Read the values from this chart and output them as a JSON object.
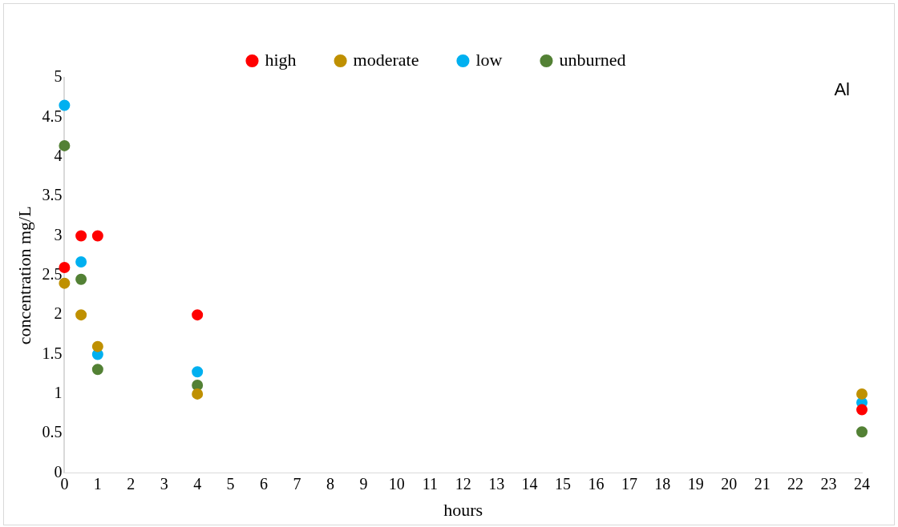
{
  "chart_data": {
    "type": "scatter",
    "xlabel": "hours",
    "ylabel": "concentration mg/L",
    "annotations": [
      "Al"
    ],
    "x": [
      0,
      0.5,
      1,
      4,
      24
    ],
    "series": [
      {
        "name": "high",
        "color": "#ff0000",
        "values": [
          2.6,
          3.0,
          3.0,
          2.0,
          0.8
        ]
      },
      {
        "name": "moderate",
        "color": "#bf9000",
        "values": [
          2.4,
          2.0,
          1.6,
          1.0,
          1.0
        ]
      },
      {
        "name": "low",
        "color": "#00b0f0",
        "values": [
          4.65,
          2.67,
          1.5,
          1.28,
          0.89
        ]
      },
      {
        "name": "unburned",
        "color": "#538135",
        "values": [
          4.14,
          2.45,
          1.31,
          1.11,
          0.52
        ]
      }
    ],
    "xlim": [
      0,
      24
    ],
    "xticks": [
      0,
      1,
      2,
      3,
      4,
      5,
      6,
      7,
      8,
      9,
      10,
      11,
      12,
      13,
      14,
      15,
      16,
      17,
      18,
      19,
      20,
      21,
      22,
      23,
      24
    ],
    "ylim": [
      0,
      5
    ],
    "yticks": [
      0,
      0.5,
      1,
      1.5,
      2,
      2.5,
      3,
      3.5,
      4,
      4.5,
      5
    ],
    "grid": false,
    "legend": "top",
    "marker": "circle"
  }
}
